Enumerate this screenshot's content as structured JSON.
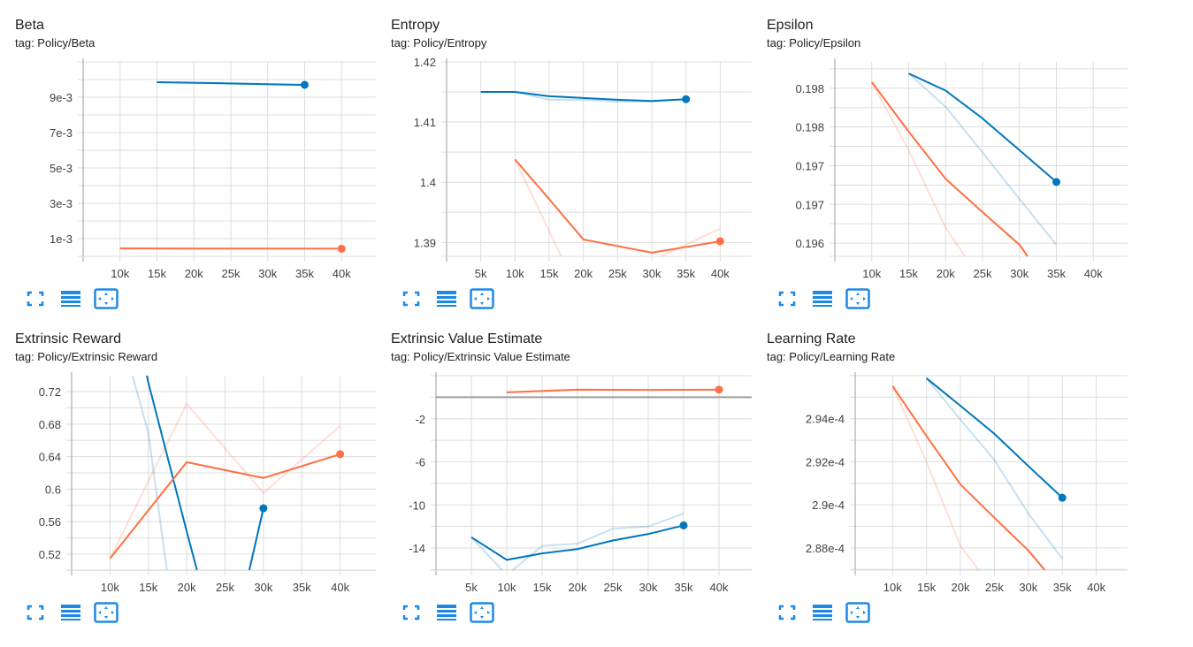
{
  "colors": {
    "blue": "#0077bb",
    "orange": "#ff7043",
    "grid": "#dddddd",
    "axis": "#9e9e9e",
    "icon": "#1e88e5"
  },
  "icons": [
    "fullscreen-icon",
    "data-selection-icon",
    "fit-domain-icon"
  ],
  "chart_data": [
    {
      "type": "line",
      "title": "Beta",
      "tag": "tag: Policy/Beta",
      "xlim": [
        5000,
        45000
      ],
      "ylim": [
        0,
        0.011
      ],
      "xticks": [
        {
          "v": 10000,
          "l": "10k"
        },
        {
          "v": 15000,
          "l": "15k"
        },
        {
          "v": 20000,
          "l": "20k"
        },
        {
          "v": 25000,
          "l": "25k"
        },
        {
          "v": 30000,
          "l": "30k"
        },
        {
          "v": 35000,
          "l": "35k"
        },
        {
          "v": 40000,
          "l": "40k"
        }
      ],
      "yticks": [
        {
          "v": 0.001,
          "l": "1e-3"
        },
        {
          "v": 0.003,
          "l": "3e-3"
        },
        {
          "v": 0.005,
          "l": "5e-3"
        },
        {
          "v": 0.007,
          "l": "7e-3"
        },
        {
          "v": 0.009,
          "l": "9e-3"
        }
      ],
      "series": [
        {
          "color": "blue",
          "smoothed": [
            [
              15000,
              0.00985
            ],
            [
              20000,
              0.00982
            ],
            [
              25000,
              0.00978
            ],
            [
              30000,
              0.00974
            ],
            [
              35000,
              0.0097
            ]
          ],
          "raw": [
            [
              15000,
              0.00985
            ],
            [
              20000,
              0.0098
            ],
            [
              25000,
              0.00976
            ],
            [
              30000,
              0.00972
            ],
            [
              35000,
              0.00968
            ]
          ]
        },
        {
          "color": "orange",
          "smoothed": [
            [
              10000,
              0.00045
            ],
            [
              20000,
              0.00044
            ],
            [
              30000,
              0.00044
            ],
            [
              40000,
              0.00043
            ]
          ],
          "raw": [
            [
              10000,
              0.00045
            ],
            [
              20000,
              0.00044
            ],
            [
              30000,
              0.00044
            ],
            [
              40000,
              0.00043
            ]
          ]
        }
      ]
    },
    {
      "type": "line",
      "title": "Entropy",
      "tag": "tag: Policy/Entropy",
      "xlim": [
        0,
        45000
      ],
      "ylim": [
        1.3877,
        1.42
      ],
      "xticks": [
        {
          "v": 5000,
          "l": "5k"
        },
        {
          "v": 10000,
          "l": "10k"
        },
        {
          "v": 15000,
          "l": "15k"
        },
        {
          "v": 20000,
          "l": "20k"
        },
        {
          "v": 25000,
          "l": "25k"
        },
        {
          "v": 30000,
          "l": "30k"
        },
        {
          "v": 35000,
          "l": "35k"
        },
        {
          "v": 40000,
          "l": "40k"
        }
      ],
      "yticks": [
        {
          "v": 1.39,
          "l": "1.39"
        },
        {
          "v": 1.4,
          "l": "1.4"
        },
        {
          "v": 1.41,
          "l": "1.41"
        },
        {
          "v": 1.42,
          "l": "1.42"
        }
      ],
      "series": [
        {
          "color": "blue",
          "smoothed": [
            [
              5000,
              1.415
            ],
            [
              10000,
              1.415
            ],
            [
              15000,
              1.4143
            ],
            [
              20000,
              1.414
            ],
            [
              25000,
              1.4137
            ],
            [
              30000,
              1.4135
            ],
            [
              35000,
              1.4138
            ]
          ],
          "raw": [
            [
              5000,
              1.415
            ],
            [
              10000,
              1.415
            ],
            [
              15000,
              1.4137
            ],
            [
              20000,
              1.4137
            ],
            [
              25000,
              1.4134
            ],
            [
              30000,
              1.4134
            ],
            [
              35000,
              1.4138
            ]
          ]
        },
        {
          "color": "orange",
          "smoothed": [
            [
              10000,
              1.4038
            ],
            [
              15000,
              1.3972
            ],
            [
              20000,
              1.3905
            ],
            [
              30000,
              1.3883
            ],
            [
              40000,
              1.3902
            ]
          ],
          "raw": [
            [
              10000,
              1.4038
            ],
            [
              20000,
              1.38
            ],
            [
              30000,
              1.387
            ],
            [
              40000,
              1.3923
            ]
          ]
        }
      ]
    },
    {
      "type": "line",
      "title": "Epsilon",
      "tag": "tag: Policy/Epsilon",
      "xlim": [
        5000,
        45000
      ],
      "ylim": [
        0.19583,
        0.19834
      ],
      "xticks": [
        {
          "v": 10000,
          "l": "10k"
        },
        {
          "v": 15000,
          "l": "15k"
        },
        {
          "v": 20000,
          "l": "20k"
        },
        {
          "v": 25000,
          "l": "25k"
        },
        {
          "v": 30000,
          "l": "30k"
        },
        {
          "v": 35000,
          "l": "35k"
        },
        {
          "v": 40000,
          "l": "40k"
        }
      ],
      "yticks": [
        {
          "v": 0.196,
          "l": "0.196"
        },
        {
          "v": 0.1965,
          "l": "0.197"
        },
        {
          "v": 0.197,
          "l": "0.197"
        },
        {
          "v": 0.1975,
          "l": "0.198"
        },
        {
          "v": 0.198,
          "l": "0.198"
        }
      ],
      "series": [
        {
          "color": "blue",
          "smoothed": [
            [
              15000,
              0.19819
            ],
            [
              20000,
              0.19797
            ],
            [
              25000,
              0.19761
            ],
            [
              30000,
              0.1972
            ],
            [
              35000,
              0.19679
            ]
          ],
          "raw": [
            [
              15000,
              0.19819
            ],
            [
              20000,
              0.19776
            ],
            [
              25000,
              0.19717
            ],
            [
              30000,
              0.19657
            ],
            [
              35000,
              0.19598
            ]
          ]
        },
        {
          "color": "orange",
          "smoothed": [
            [
              10000,
              0.19808
            ],
            [
              15000,
              0.19744
            ],
            [
              20000,
              0.19683
            ],
            [
              25000,
              0.1964
            ],
            [
              30000,
              0.19598
            ],
            [
              35000,
              0.1953
            ]
          ],
          "raw": [
            [
              10000,
              0.19808
            ],
            [
              15000,
              0.1972
            ],
            [
              20000,
              0.1962
            ],
            [
              25000,
              0.1955
            ]
          ]
        }
      ]
    },
    {
      "type": "line",
      "title": "Extrinsic Reward",
      "tag": "tag: Policy/Extrinsic Reward",
      "xlim": [
        5000,
        45000
      ],
      "ylim": [
        0.5004,
        0.7396
      ],
      "xticks": [
        {
          "v": 10000,
          "l": "10k"
        },
        {
          "v": 15000,
          "l": "15k"
        },
        {
          "v": 20000,
          "l": "20k"
        },
        {
          "v": 25000,
          "l": "25k"
        },
        {
          "v": 30000,
          "l": "30k"
        },
        {
          "v": 35000,
          "l": "35k"
        },
        {
          "v": 40000,
          "l": "40k"
        }
      ],
      "yticks": [
        {
          "v": 0.52,
          "l": "0.52"
        },
        {
          "v": 0.56,
          "l": "0.56"
        },
        {
          "v": 0.6,
          "l": "0.6"
        },
        {
          "v": 0.64,
          "l": "0.64"
        },
        {
          "v": 0.68,
          "l": "0.68"
        },
        {
          "v": 0.72,
          "l": "0.72"
        }
      ],
      "series": [
        {
          "color": "blue",
          "smoothed": [
            [
              10000,
              0.95
            ],
            [
              15000,
              0.731
            ],
            [
              20000,
              0.548
            ],
            [
              25000,
              0.37
            ],
            [
              30000,
              0.5765
            ]
          ],
          "raw": [
            [
              10000,
              0.84
            ],
            [
              15000,
              0.669
            ],
            [
              20000,
              0.32
            ],
            [
              25000,
              0.25
            ],
            [
              30000,
              0.45
            ]
          ]
        },
        {
          "color": "orange",
          "smoothed": [
            [
              10000,
              0.5146
            ],
            [
              20000,
              0.6332
            ],
            [
              30000,
              0.6137
            ],
            [
              40000,
              0.643
            ]
          ],
          "raw": [
            [
              10000,
              0.5146
            ],
            [
              20000,
              0.705
            ],
            [
              30000,
              0.5952
            ],
            [
              40000,
              0.6777
            ]
          ]
        }
      ]
    },
    {
      "type": "line",
      "title": "Extrinsic Value Estimate",
      "tag": "tag: Policy/Extrinsic Value Estimate",
      "xlim": [
        0,
        45000
      ],
      "ylim": [
        -16.05,
        2.0
      ],
      "zero_line": true,
      "xticks": [
        {
          "v": 5000,
          "l": "5k"
        },
        {
          "v": 10000,
          "l": "10k"
        },
        {
          "v": 15000,
          "l": "15k"
        },
        {
          "v": 20000,
          "l": "20k"
        },
        {
          "v": 25000,
          "l": "25k"
        },
        {
          "v": 30000,
          "l": "30k"
        },
        {
          "v": 35000,
          "l": "35k"
        },
        {
          "v": 40000,
          "l": "40k"
        }
      ],
      "yticks": [
        {
          "v": -14,
          "l": "-14"
        },
        {
          "v": -10,
          "l": "-10"
        },
        {
          "v": -6,
          "l": "-6"
        },
        {
          "v": -2,
          "l": "-2"
        }
      ],
      "series": [
        {
          "color": "blue",
          "smoothed": [
            [
              5000,
              -13.0
            ],
            [
              10000,
              -15.1
            ],
            [
              15000,
              -14.5
            ],
            [
              20000,
              -14.1
            ],
            [
              25000,
              -13.3
            ],
            [
              30000,
              -12.7
            ],
            [
              35000,
              -11.9
            ]
          ],
          "raw": [
            [
              5000,
              -13.0
            ],
            [
              10000,
              -16.5
            ],
            [
              15000,
              -13.8
            ],
            [
              20000,
              -13.6
            ],
            [
              25000,
              -12.2
            ],
            [
              30000,
              -12.0
            ],
            [
              35000,
              -10.8
            ]
          ]
        },
        {
          "color": "orange",
          "smoothed": [
            [
              10000,
              0.45
            ],
            [
              20000,
              0.7
            ],
            [
              30000,
              0.68
            ],
            [
              40000,
              0.7
            ]
          ],
          "raw": [
            [
              10000,
              0.45
            ],
            [
              20000,
              0.72
            ],
            [
              30000,
              0.68
            ],
            [
              40000,
              0.7
            ]
          ]
        }
      ]
    },
    {
      "type": "line",
      "title": "Learning Rate",
      "tag": "tag: Policy/Learning Rate",
      "xlim": [
        4500,
        45000
      ],
      "ylim": [
        0.00028697,
        0.000296
      ],
      "xticks": [
        {
          "v": 10000,
          "l": "10k"
        },
        {
          "v": 15000,
          "l": "15k"
        },
        {
          "v": 20000,
          "l": "20k"
        },
        {
          "v": 25000,
          "l": "25k"
        },
        {
          "v": 30000,
          "l": "30k"
        },
        {
          "v": 35000,
          "l": "35k"
        },
        {
          "v": 40000,
          "l": "40k"
        }
      ],
      "yticks": [
        {
          "v": 0.000288,
          "l": "2.88e-4"
        },
        {
          "v": 0.00029,
          "l": "2.9e-4"
        },
        {
          "v": 0.000292,
          "l": "2.92e-4"
        },
        {
          "v": 0.000294,
          "l": "2.94e-4"
        }
      ],
      "series": [
        {
          "color": "blue",
          "smoothed": [
            [
              15000,
              0.00029588
            ],
            [
              20000,
              0.0002946
            ],
            [
              25000,
              0.0002933
            ],
            [
              30000,
              0.0002918
            ],
            [
              35000,
              0.00029033
            ]
          ],
          "raw": [
            [
              15000,
              0.00029588
            ],
            [
              20000,
              0.00029396
            ],
            [
              25000,
              0.00029208
            ],
            [
              30000,
              0.0002896
            ],
            [
              35000,
              0.0002875
            ]
          ]
        },
        {
          "color": "orange",
          "smoothed": [
            [
              10000,
              0.00029552
            ],
            [
              15000,
              0.0002932
            ],
            [
              20000,
              0.00029095
            ],
            [
              25000,
              0.0002894
            ],
            [
              30000,
              0.00028788
            ],
            [
              35000,
              0.000286
            ]
          ],
          "raw": [
            [
              10000,
              0.00029552
            ],
            [
              15000,
              0.000292
            ],
            [
              20000,
              0.0002881
            ],
            [
              25000,
              0.000286
            ]
          ]
        }
      ]
    }
  ]
}
